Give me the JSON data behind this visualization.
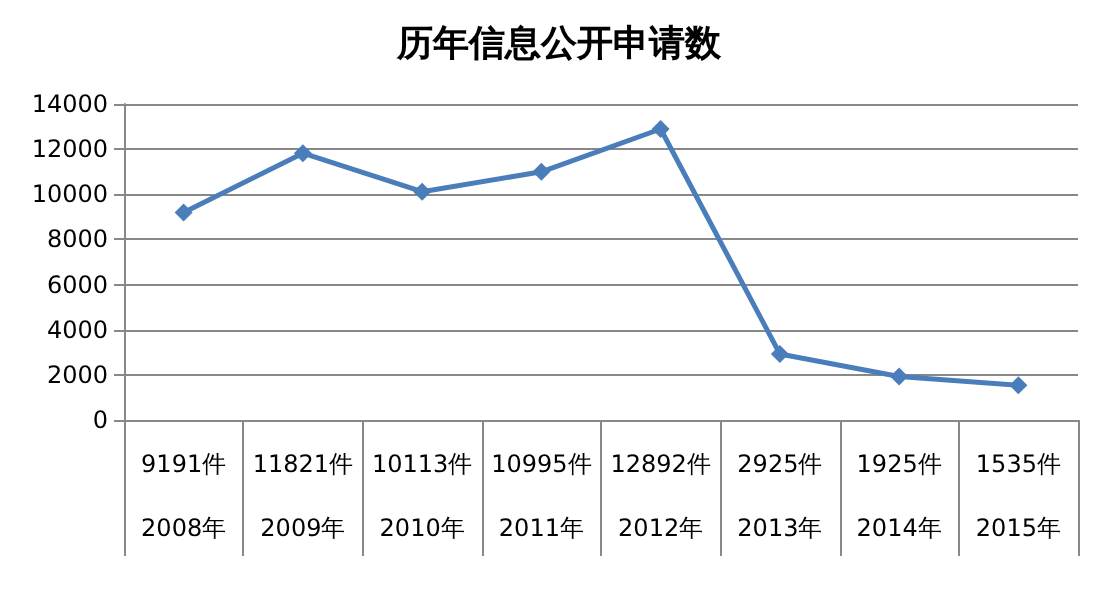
{
  "chart_data": {
    "type": "line",
    "title": "历年信息公开申请数",
    "categories": [
      "2008年",
      "2009年",
      "2010年",
      "2011年",
      "2012年",
      "2013年",
      "2014年",
      "2015年"
    ],
    "series": [
      {
        "color": "#4a7ebb",
        "values": [
          9191,
          11821,
          10113,
          10995,
          12892,
          2925,
          1925,
          1535
        ],
        "value_labels": [
          "9191件",
          "11821件",
          "10113件",
          "10995件",
          "12892件",
          "2925件",
          "1925件",
          "1535件"
        ]
      }
    ],
    "ylim": [
      0,
      14000
    ],
    "yticks": [
      0,
      2000,
      4000,
      6000,
      8000,
      10000,
      12000,
      14000
    ],
    "grid": "y",
    "marker": "diamond",
    "line_style": "solid"
  }
}
